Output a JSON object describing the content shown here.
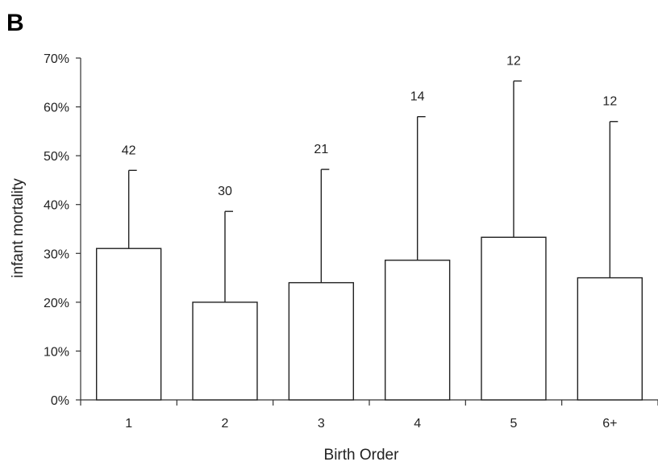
{
  "panel_label": "B",
  "chart_data": {
    "type": "bar",
    "title": "",
    "xlabel": "Birth Order",
    "ylabel": "infant mortality",
    "ylim": [
      0,
      70
    ],
    "y_ticks": [
      "0%",
      "10%",
      "20%",
      "30%",
      "40%",
      "50%",
      "60%",
      "70%"
    ],
    "categories": [
      "1",
      "2",
      "3",
      "4",
      "5",
      "6+"
    ],
    "values": [
      31,
      20,
      24,
      28.6,
      33.3,
      25
    ],
    "error_upper": [
      47,
      38.6,
      47.2,
      58,
      65.3,
      57
    ],
    "n_labels": [
      "42",
      "30",
      "21",
      "14",
      "12",
      "12"
    ],
    "grid": false,
    "legend": "none",
    "bar_fill": "#ffffff",
    "bar_stroke": "#222222"
  }
}
